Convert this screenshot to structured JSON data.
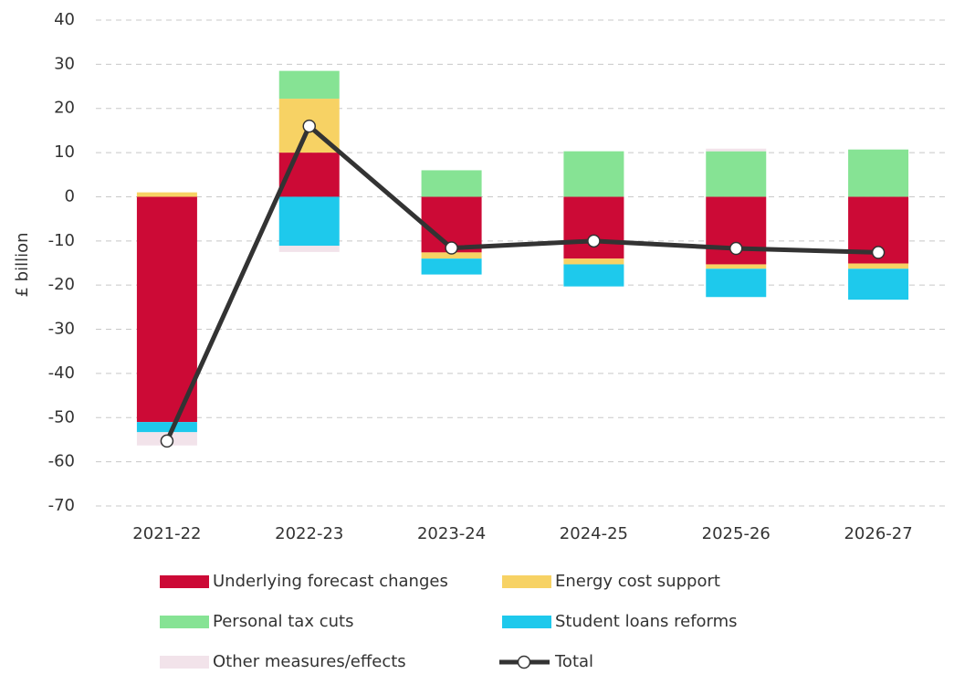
{
  "chart_data": {
    "type": "bar",
    "stacked": true,
    "y_label": "£ billion",
    "categories": [
      "2021-22",
      "2022-23",
      "2023-24",
      "2024-25",
      "2025-26",
      "2026-27"
    ],
    "series": [
      {
        "name": "Underlying forecast changes",
        "color": "#cc0a36",
        "values": [
          -51,
          10,
          -12.6,
          -14,
          -15.3,
          -15.1
        ]
      },
      {
        "name": "Energy cost support",
        "color": "#f7d264",
        "values": [
          1,
          12.2,
          -1.4,
          -1.3,
          -1,
          -1.2
        ]
      },
      {
        "name": "Personal tax cuts",
        "color": "#86e394",
        "values": [
          0,
          6.3,
          6,
          10.3,
          10.3,
          10.7
        ]
      },
      {
        "name": "Student loans reforms",
        "color": "#1ec9ec",
        "values": [
          -2.3,
          -11.1,
          -3.6,
          -5,
          -6.4,
          -7
        ]
      },
      {
        "name": "Other measures/effects",
        "color": "#f2e3ea",
        "values": [
          -3,
          -1.4,
          0,
          0,
          0.6,
          0
        ]
      },
      {
        "name": "Total",
        "type": "line",
        "color": "#333333",
        "values": [
          -55.3,
          16,
          -11.6,
          -10,
          -11.7,
          -12.6
        ]
      }
    ],
    "ylim": [
      -70,
      40
    ],
    "yticks": [
      -70,
      -60,
      -50,
      -40,
      -30,
      -20,
      -10,
      0,
      10,
      20,
      30,
      40
    ],
    "grid": true,
    "legend": "bottom"
  }
}
